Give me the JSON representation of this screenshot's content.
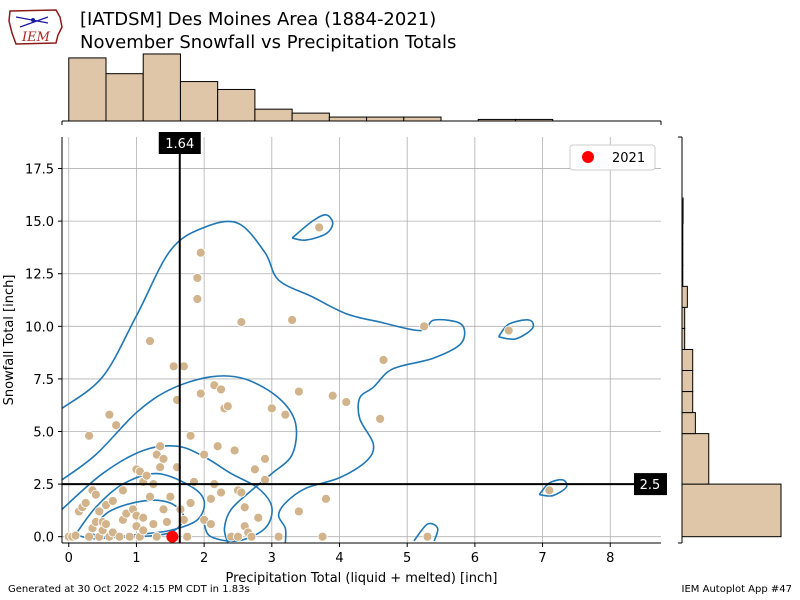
{
  "header": {
    "title_line1": "[IATDSM] Des Moines Area (1884-2021)",
    "title_line2": "November Snowfall vs Precipitation Totals",
    "logo_text": "IEM"
  },
  "footer": {
    "left": "Generated at 30 Oct 2022 4:15 PM CDT in 1.83s",
    "right": "IEM Autoplot App #47"
  },
  "colors": {
    "point": "#d2b48c",
    "hist_fill": "#dfc6a8",
    "highlight": "#ff0000",
    "contour": "#1f77b4",
    "ref_line": "#000000"
  },
  "chart_data": {
    "type": "scatter",
    "xlabel": "Precipitation Total (liquid + melted) [inch]",
    "ylabel": "Snowfall Total [inch]",
    "xlim": [
      -0.1,
      8.75
    ],
    "ylim": [
      -0.3,
      19.0
    ],
    "xticks": [
      0,
      1,
      2,
      3,
      4,
      5,
      6,
      7,
      8
    ],
    "yticks": [
      0.0,
      2.5,
      5.0,
      7.5,
      10.0,
      12.5,
      15.0,
      17.5
    ],
    "grid": true,
    "legend": {
      "position": "top-right",
      "entries": [
        "2021"
      ]
    },
    "highlight": {
      "name": "2021",
      "x": 1.53,
      "y": 0.0
    },
    "vline": {
      "x": 1.64,
      "label": "1.64"
    },
    "hline": {
      "y": 2.5,
      "label": "2.5"
    },
    "points": [
      [
        0.0,
        0.0
      ],
      [
        0.05,
        0.0
      ],
      [
        0.1,
        0.05
      ],
      [
        0.15,
        1.2
      ],
      [
        0.2,
        1.4
      ],
      [
        0.25,
        1.6
      ],
      [
        0.3,
        0.0
      ],
      [
        0.3,
        4.8
      ],
      [
        0.35,
        2.2
      ],
      [
        0.35,
        0.4
      ],
      [
        0.4,
        0.7
      ],
      [
        0.4,
        2.0
      ],
      [
        0.45,
        0.0
      ],
      [
        0.45,
        1.2
      ],
      [
        0.5,
        0.3
      ],
      [
        0.5,
        0.7
      ],
      [
        0.55,
        1.5
      ],
      [
        0.55,
        0.6
      ],
      [
        0.6,
        0.0
      ],
      [
        0.6,
        5.8
      ],
      [
        0.65,
        1.7
      ],
      [
        0.65,
        0.2
      ],
      [
        0.7,
        5.3
      ],
      [
        0.75,
        0.0
      ],
      [
        0.8,
        2.2
      ],
      [
        0.8,
        0.8
      ],
      [
        0.85,
        1.1
      ],
      [
        0.9,
        0.0
      ],
      [
        0.95,
        1.3
      ],
      [
        1.0,
        0.5
      ],
      [
        1.0,
        1.0
      ],
      [
        1.0,
        3.2
      ],
      [
        1.05,
        3.1
      ],
      [
        1.05,
        0.0
      ],
      [
        1.1,
        2.6
      ],
      [
        1.1,
        0.3
      ],
      [
        1.1,
        0.9
      ],
      [
        1.15,
        2.9
      ],
      [
        1.2,
        1.9
      ],
      [
        1.2,
        9.3
      ],
      [
        1.25,
        0.6
      ],
      [
        1.25,
        2.5
      ],
      [
        1.3,
        3.9
      ],
      [
        1.3,
        0.0
      ],
      [
        1.35,
        3.3
      ],
      [
        1.35,
        4.3
      ],
      [
        1.4,
        1.3
      ],
      [
        1.4,
        3.7
      ],
      [
        1.45,
        0.7
      ],
      [
        1.5,
        1.9
      ],
      [
        1.55,
        8.1
      ],
      [
        1.6,
        3.3
      ],
      [
        1.6,
        6.5
      ],
      [
        1.65,
        1.3
      ],
      [
        1.7,
        0.8
      ],
      [
        1.7,
        8.1
      ],
      [
        1.75,
        0.0
      ],
      [
        1.8,
        1.6
      ],
      [
        1.8,
        4.8
      ],
      [
        1.85,
        2.6
      ],
      [
        1.9,
        11.3
      ],
      [
        1.9,
        12.3
      ],
      [
        1.95,
        13.5
      ],
      [
        1.95,
        6.8
      ],
      [
        2.0,
        3.9
      ],
      [
        2.0,
        0.8
      ],
      [
        2.1,
        0.6
      ],
      [
        2.1,
        1.8
      ],
      [
        2.15,
        2.5
      ],
      [
        2.15,
        7.2
      ],
      [
        2.2,
        4.3
      ],
      [
        2.25,
        2.1
      ],
      [
        2.25,
        7.0
      ],
      [
        2.3,
        6.1
      ],
      [
        2.35,
        6.2
      ],
      [
        2.4,
        0.0
      ],
      [
        2.45,
        4.1
      ],
      [
        2.5,
        2.2
      ],
      [
        2.5,
        0.0
      ],
      [
        2.55,
        10.2
      ],
      [
        2.55,
        2.1
      ],
      [
        2.6,
        0.5
      ],
      [
        2.6,
        1.4
      ],
      [
        2.65,
        0.2
      ],
      [
        2.7,
        0.0
      ],
      [
        2.75,
        3.2
      ],
      [
        2.8,
        0.9
      ],
      [
        2.9,
        3.7
      ],
      [
        2.9,
        2.7
      ],
      [
        3.0,
        6.1
      ],
      [
        3.1,
        0.0
      ],
      [
        3.2,
        5.8
      ],
      [
        3.3,
        10.3
      ],
      [
        3.4,
        6.9
      ],
      [
        3.4,
        1.2
      ],
      [
        3.7,
        14.7
      ],
      [
        3.75,
        0.0
      ],
      [
        3.8,
        1.8
      ],
      [
        3.9,
        6.7
      ],
      [
        4.1,
        6.4
      ],
      [
        4.6,
        5.6
      ],
      [
        4.65,
        8.4
      ],
      [
        5.25,
        10.0
      ],
      [
        5.3,
        0.0
      ],
      [
        6.5,
        9.8
      ],
      [
        7.1,
        2.2
      ]
    ],
    "contours": [
      [
        [
          -0.1,
          6.1
        ],
        [
          0.5,
          7.6
        ],
        [
          1.0,
          10.5
        ],
        [
          1.5,
          13.6
        ],
        [
          2.0,
          14.7
        ],
        [
          2.5,
          14.9
        ],
        [
          2.9,
          13.5
        ],
        [
          3.1,
          12.2
        ],
        [
          3.6,
          11.4
        ],
        [
          4.1,
          10.6
        ],
        [
          4.6,
          10.2
        ],
        [
          5.2,
          9.8
        ],
        [
          5.4,
          10.3
        ],
        [
          5.8,
          10.1
        ],
        [
          5.8,
          9.2
        ],
        [
          5.4,
          8.5
        ],
        [
          4.9,
          8.1
        ],
        [
          4.7,
          7.8
        ],
        [
          4.5,
          7.1
        ],
        [
          4.3,
          6.6
        ],
        [
          4.3,
          5.6
        ],
        [
          4.5,
          4.4
        ],
        [
          4.4,
          3.6
        ],
        [
          4.0,
          2.8
        ],
        [
          3.5,
          2.3
        ],
        [
          3.2,
          1.6
        ],
        [
          3.1,
          1.0
        ],
        [
          3.2,
          0.4
        ],
        [
          3.2,
          -0.3
        ]
      ],
      [
        [
          -0.1,
          2.7
        ],
        [
          0.4,
          3.9
        ],
        [
          1.0,
          5.9
        ],
        [
          1.5,
          7.0
        ],
        [
          2.1,
          7.6
        ],
        [
          2.6,
          7.5
        ],
        [
          3.1,
          6.6
        ],
        [
          3.35,
          5.4
        ],
        [
          3.3,
          3.9
        ],
        [
          3.0,
          3.0
        ],
        [
          2.7,
          2.2
        ],
        [
          2.4,
          1.3
        ],
        [
          2.3,
          0.4
        ],
        [
          2.35,
          -0.3
        ]
      ],
      [
        [
          -0.1,
          1.3
        ],
        [
          0.5,
          3.0
        ],
        [
          1.1,
          4.1
        ],
        [
          1.6,
          4.3
        ],
        [
          2.0,
          3.8
        ],
        [
          2.4,
          3.0
        ],
        [
          2.8,
          2.3
        ],
        [
          3.0,
          1.4
        ],
        [
          2.9,
          0.4
        ],
        [
          2.5,
          -0.2
        ],
        [
          2.1,
          0.0
        ],
        [
          2.0,
          0.6
        ]
      ],
      [
        [
          0.1,
          0.1
        ],
        [
          0.4,
          1.4
        ],
        [
          0.8,
          2.5
        ],
        [
          1.3,
          3.0
        ],
        [
          1.8,
          2.4
        ],
        [
          2.0,
          1.7
        ],
        [
          1.9,
          0.8
        ],
        [
          1.5,
          0.3
        ],
        [
          1.0,
          0.1
        ],
        [
          0.4,
          -0.1
        ],
        [
          0.1,
          0.1
        ]
      ],
      [
        [
          0.3,
          0.2
        ],
        [
          0.6,
          1.2
        ],
        [
          1.1,
          1.7
        ],
        [
          1.5,
          1.6
        ],
        [
          1.7,
          0.9
        ],
        [
          1.5,
          0.2
        ],
        [
          1.0,
          0.0
        ],
        [
          0.5,
          0.0
        ],
        [
          0.3,
          0.2
        ]
      ],
      [
        [
          3.3,
          14.2
        ],
        [
          3.6,
          15.0
        ],
        [
          3.8,
          15.3
        ],
        [
          3.9,
          14.9
        ],
        [
          3.8,
          14.4
        ],
        [
          3.5,
          14.1
        ],
        [
          3.3,
          14.2
        ]
      ],
      [
        [
          6.35,
          9.5
        ],
        [
          6.5,
          10.1
        ],
        [
          6.8,
          10.3
        ],
        [
          6.85,
          9.9
        ],
        [
          6.6,
          9.4
        ],
        [
          6.35,
          9.5
        ]
      ],
      [
        [
          6.95,
          2.0
        ],
        [
          7.1,
          2.55
        ],
        [
          7.3,
          2.7
        ],
        [
          7.35,
          2.35
        ],
        [
          7.15,
          1.95
        ],
        [
          6.95,
          2.0
        ]
      ],
      [
        [
          5.1,
          -0.2
        ],
        [
          5.3,
          0.6
        ],
        [
          5.45,
          0.4
        ],
        [
          5.4,
          -0.2
        ]
      ]
    ],
    "top_hist": {
      "bins": [
        0,
        0.55,
        1.1,
        1.65,
        2.2,
        2.75,
        3.3,
        3.85,
        4.4,
        4.95,
        5.5,
        6.05,
        6.6,
        7.15
      ],
      "counts": [
        16,
        12,
        17,
        10,
        8,
        3,
        2,
        1,
        1,
        1,
        0,
        0.4,
        0.4
      ]
    },
    "right_hist": {
      "bins": [
        0,
        2.5,
        4.9,
        5.9,
        6.9,
        7.9,
        8.9,
        9.9,
        10.9,
        11.9,
        12.9,
        13.9,
        14.9,
        16.1
      ],
      "counts": [
        37,
        10,
        5,
        4,
        4,
        4,
        1,
        1,
        2,
        0.3,
        0.3,
        0.3,
        0.4
      ]
    }
  }
}
